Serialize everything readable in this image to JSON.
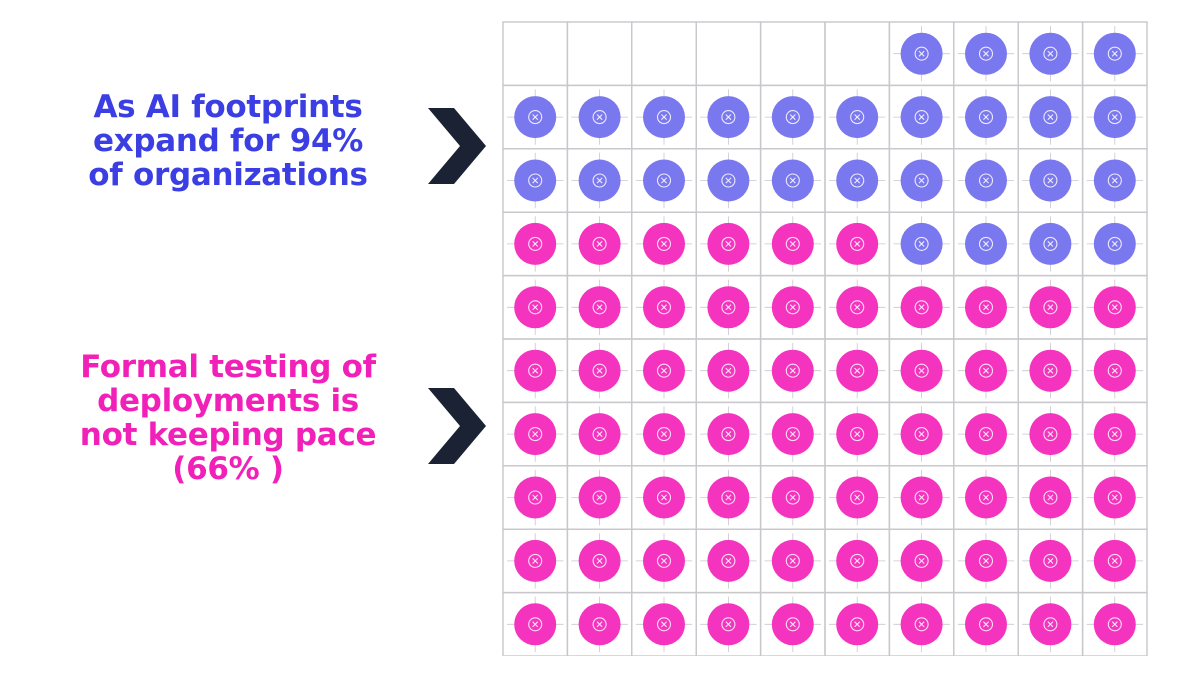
{
  "headline_top": {
    "lines": [
      "As AI footprints",
      "expand for 94%",
      "of organizations"
    ],
    "color": "#3b3fe3"
  },
  "headline_bottom": {
    "lines": [
      "Formal testing of",
      "deployments is",
      "not keeping pace",
      "(66% )"
    ],
    "color": "#f020b8"
  },
  "chevron_color": "#1b2233",
  "chart_data": {
    "type": "waffle",
    "title": "",
    "rows": 10,
    "columns": 10,
    "fill_order": "bottom-up, from the bottom-left cell; top row filled right-aligned",
    "total_cells": 100,
    "series": [
      {
        "name": "Formal testing of deployments",
        "value": 66,
        "color": "#f434bf"
      },
      {
        "name": "AI footprints expand",
        "value": 28,
        "color": "#7a78ee"
      },
      {
        "name": "",
        "value": 6,
        "color": "#ffffff"
      }
    ],
    "cell_icon": "circled-x-icon",
    "grid_color": "#c8c8cc",
    "grid": true
  }
}
